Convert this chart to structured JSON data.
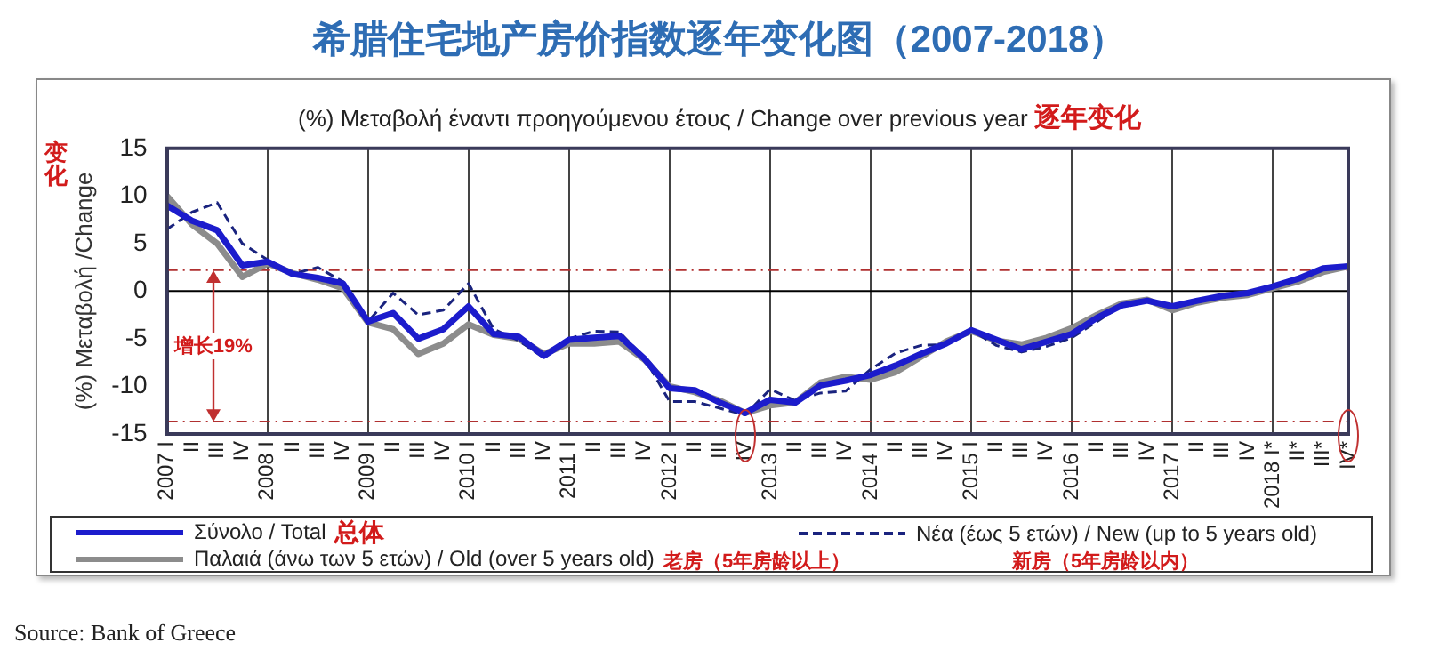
{
  "chart_data": {
    "type": "line",
    "title": "希腊住宅地产房价指数逐年变化图（2007-2018）",
    "subtitle": "(%) Μεταβολή έναντι προηγούμενου έτους / Change over previous year",
    "ylabel": "(%) Μεταβολή /Change",
    "categories": [
      "2007 I",
      "II",
      "III",
      "IV",
      "2008 I",
      "II",
      "III",
      "IV",
      "2009 I",
      "II",
      "III",
      "IV",
      "2010 I",
      "II",
      "III",
      "IV",
      "2011 I",
      "II",
      "III",
      "IV",
      "2012 I",
      "II",
      "III",
      "IV",
      "2013 I",
      "II",
      "III",
      "IV",
      "2014 I",
      "II",
      "III",
      "IV",
      "2015 I",
      "II",
      "III",
      "IV",
      "2016 I",
      "II",
      "III",
      "IV",
      "2017 I",
      "II",
      "III",
      "IV",
      "2018 I*",
      "II*",
      "III*",
      "IV*"
    ],
    "series": [
      {
        "name": "Σύνολο / Total",
        "color": "#1c1ccc",
        "line_style": "solid",
        "values": [
          9.0,
          7.4,
          6.4,
          2.7,
          3.1,
          1.8,
          1.4,
          0.8,
          -3.2,
          -2.3,
          -5.0,
          -4.0,
          -1.6,
          -4.5,
          -4.8,
          -6.8,
          -5.1,
          -4.9,
          -4.7,
          -7.1,
          -10.2,
          -10.4,
          -11.7,
          -12.8,
          -11.4,
          -11.7,
          -9.9,
          -9.4,
          -8.8,
          -7.8,
          -6.6,
          -5.5,
          -4.1,
          -5.1,
          -6.1,
          -5.3,
          -4.5,
          -2.8,
          -1.5,
          -1.0,
          -1.6,
          -1.0,
          -0.5,
          -0.2,
          0.5,
          1.3,
          2.4,
          2.6
        ]
      },
      {
        "name": "Νέα (έως 5 ετών) / New (up to 5 years old)",
        "color": "#1a237e",
        "line_style": "dashed",
        "values": [
          6.5,
          8.3,
          9.3,
          5.0,
          3.3,
          1.8,
          2.5,
          1.0,
          -3.2,
          -0.2,
          -2.5,
          -2.0,
          0.8,
          -4.0,
          -5.2,
          -7.0,
          -5.0,
          -4.2,
          -4.3,
          -7.0,
          -11.6,
          -11.6,
          -12.3,
          -13.0,
          -10.3,
          -11.5,
          -10.7,
          -10.5,
          -8.2,
          -6.5,
          -5.7,
          -5.6,
          -4.1,
          -5.7,
          -6.4,
          -5.8,
          -4.9,
          -3.2,
          -1.5,
          -1.0,
          -1.6,
          -1.1,
          -0.6,
          -0.3,
          0.4,
          1.2,
          2.3,
          2.6
        ]
      },
      {
        "name": "Παλαιά (άνω των 5 ετών) / Old (over 5 years old)",
        "color": "#8c8c8c",
        "line_style": "solid",
        "values": [
          10.0,
          7.0,
          5.0,
          1.5,
          2.9,
          1.9,
          1.2,
          0.3,
          -3.3,
          -4.0,
          -6.6,
          -5.5,
          -3.5,
          -4.6,
          -5.0,
          -6.6,
          -5.5,
          -5.5,
          -5.3,
          -7.2,
          -10.0,
          -10.6,
          -11.5,
          -12.8,
          -12.0,
          -11.7,
          -9.6,
          -9.0,
          -9.3,
          -8.5,
          -6.9,
          -5.3,
          -4.2,
          -5.2,
          -5.6,
          -4.9,
          -3.9,
          -2.5,
          -1.3,
          -0.9,
          -2.0,
          -1.2,
          -0.7,
          -0.4,
          0.3,
          1.0,
          2.0,
          2.6
        ]
      }
    ],
    "ylim": [
      -15,
      15
    ],
    "yticks": [
      -15,
      -10,
      -5,
      0,
      5,
      10,
      15
    ],
    "grid": "x",
    "legend": "bottom",
    "marker": "none",
    "ref_lines": [
      {
        "axis": "y",
        "value": 0,
        "color": "#000000",
        "line_style": "solid"
      },
      {
        "axis": "y",
        "value": 2.2,
        "color": "#b03030",
        "line_style": "dashdot"
      },
      {
        "axis": "y",
        "value": -13.7,
        "color": "#b03030",
        "line_style": "dashdot"
      }
    ],
    "annotations": [
      "逐年变化",
      "变化",
      "增长19%",
      "总体",
      "老房（5年房龄以上）",
      "新房（5年房龄以内）",
      "Source: Bank of Greece"
    ]
  }
}
